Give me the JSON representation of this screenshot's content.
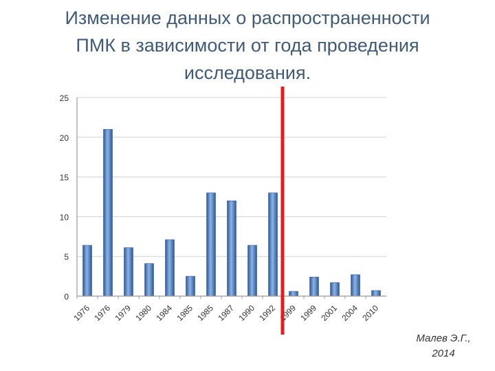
{
  "title_lines": [
    "Изменение данных о распространенности",
    "ПМК в зависимости от года проведения",
    "исследования."
  ],
  "credit_lines": [
    "Малев Э.Г.,",
    "2014"
  ],
  "colors": {
    "title": "#3f5b78",
    "bar": "#3a6fb5",
    "bar_highlight": "#8fb3e3",
    "marker": "#e02020",
    "grid": "#d0d0d0"
  },
  "chart_data": {
    "type": "bar",
    "title": "",
    "xlabel": "",
    "ylabel": "",
    "ylim": [
      0,
      25
    ],
    "yticks": [
      0,
      5,
      10,
      15,
      20,
      25
    ],
    "grid": true,
    "categories": [
      "1976",
      "1976",
      "1979",
      "1980",
      "1984",
      "1985",
      "1985",
      "1987",
      "1990",
      "1992",
      "1999",
      "1999",
      "2001",
      "2004",
      "2010"
    ],
    "values": [
      6.4,
      21,
      6.1,
      4.1,
      7.1,
      2.5,
      13,
      12,
      6.4,
      13,
      0.6,
      2.4,
      1.7,
      2.7,
      0.7
    ],
    "divider_after_index": 9
  }
}
